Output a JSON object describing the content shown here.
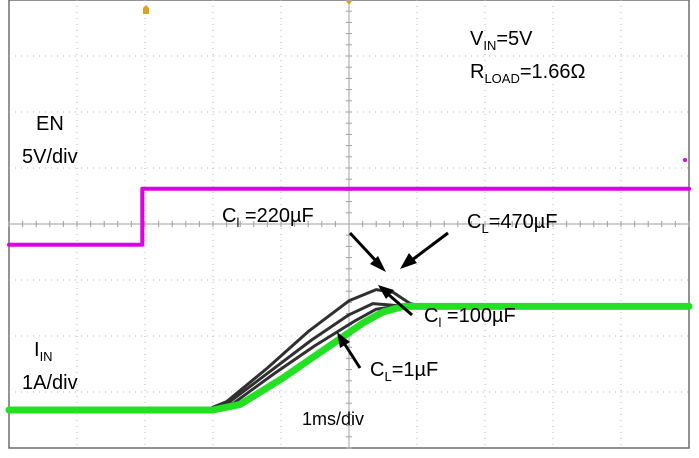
{
  "chart_data": {
    "type": "line",
    "xlabel": "",
    "ylabel": "",
    "grid": true,
    "x_divisions": 10,
    "y_divisions": 8,
    "timebase_text": "1ms/div",
    "conditions": {
      "vin_prefix": "V",
      "vin_sub": "IN",
      "vin_value": "=5V",
      "rload_prefix": "R",
      "rload_sub": "LOAD",
      "rload_value": "=1.66Ω"
    },
    "channels": {
      "en": {
        "name": "EN",
        "scale": "5V/div",
        "color": "#e000e0"
      },
      "iin": {
        "name_prefix": "I",
        "name_sub": "IN",
        "scale": "1A/div",
        "color": "#22e022"
      }
    },
    "annotations": {
      "cl220": {
        "prefix": "C",
        "sub": "l",
        "value": " =220µF"
      },
      "cl470": {
        "prefix": "C",
        "sub": "L",
        "value": "=470µF"
      },
      "cl100": {
        "prefix": "C",
        "sub": "l",
        "value": " =100µF"
      },
      "cl1": {
        "prefix": "C",
        "sub": "L",
        "value": "=1µF"
      }
    },
    "series": [
      {
        "name": "EN",
        "color": "#e000e0",
        "x": [
          0,
          1.96,
          1.96,
          10
        ],
        "y": [
          2.95,
          2.95,
          3.95,
          3.95
        ]
      },
      {
        "name": "I_IN, C_L=1µF",
        "color": "#22e022",
        "x": [
          0,
          3.0,
          3.4,
          4.0,
          4.6,
          5.2,
          5.5,
          5.8,
          10
        ],
        "y": [
          0.0,
          0.0,
          0.1,
          0.55,
          1.05,
          1.55,
          1.75,
          1.85,
          1.85
        ]
      },
      {
        "name": "I_IN, C_L=100µF",
        "color": "#303030",
        "x": [
          0,
          3.0,
          3.3,
          3.9,
          4.5,
          5.1,
          5.4,
          5.7,
          10
        ],
        "y": [
          0.0,
          0.0,
          0.12,
          0.65,
          1.15,
          1.6,
          1.8,
          1.85,
          1.85
        ]
      },
      {
        "name": "I_IN, C_L=220µF",
        "color": "#303030",
        "x": [
          0,
          2.95,
          3.25,
          3.85,
          4.45,
          5.0,
          5.35,
          5.65,
          10
        ],
        "y": [
          0.0,
          0.0,
          0.15,
          0.7,
          1.25,
          1.7,
          1.9,
          1.87,
          1.85
        ]
      },
      {
        "name": "I_IN, C_L=470µF",
        "color": "#303030",
        "x": [
          0,
          2.9,
          3.2,
          3.8,
          4.4,
          5.0,
          5.4,
          5.65,
          5.9,
          6.1,
          10
        ],
        "y": [
          0.0,
          0.0,
          0.15,
          0.75,
          1.4,
          1.95,
          2.15,
          2.1,
          1.9,
          1.85,
          1.85
        ]
      }
    ]
  }
}
